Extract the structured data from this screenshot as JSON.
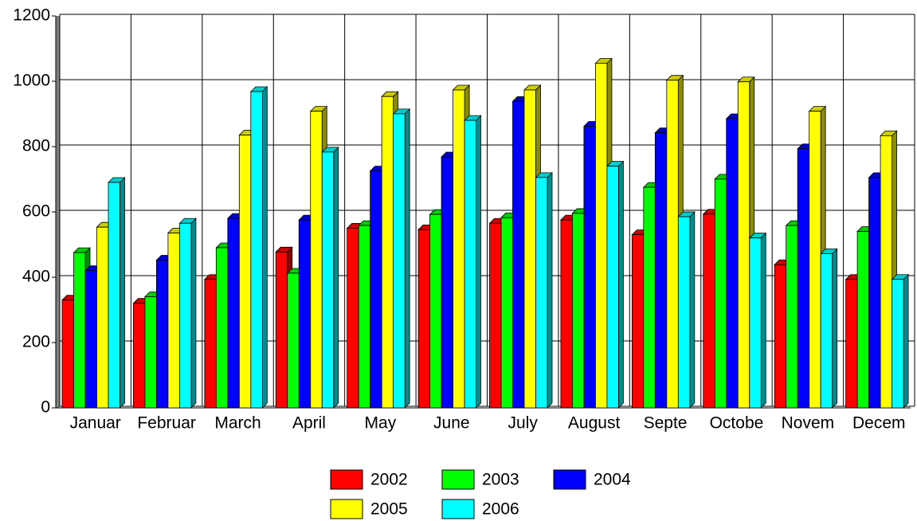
{
  "chart_data": {
    "type": "bar3d",
    "categories": [
      "Januar",
      "Februar",
      "March",
      "April",
      "May",
      "June",
      "July",
      "August",
      "Septe",
      "Octobe",
      "Novem",
      "Decem"
    ],
    "series": [
      {
        "name": "2002",
        "color": "#ff0000",
        "values": [
          340,
          330,
          403,
          487,
          560,
          555,
          575,
          585,
          540,
          603,
          448,
          403
        ]
      },
      {
        "name": "2003",
        "color": "#00ff00",
        "values": [
          485,
          350,
          500,
          422,
          568,
          602,
          592,
          605,
          685,
          710,
          568,
          550
        ]
      },
      {
        "name": "2004",
        "color": "#0000ff",
        "values": [
          430,
          462,
          590,
          585,
          735,
          778,
          948,
          872,
          852,
          895,
          803,
          715
        ]
      },
      {
        "name": "2005",
        "color": "#ffff00",
        "values": [
          563,
          545,
          845,
          918,
          963,
          983,
          983,
          1065,
          1013,
          1008,
          918,
          843
        ]
      },
      {
        "name": "2006",
        "color": "#00ffff",
        "values": [
          700,
          575,
          978,
          793,
          910,
          890,
          715,
          750,
          595,
          530,
          482,
          403
        ]
      }
    ],
    "ylim": [
      0,
      1200
    ],
    "yticks": [
      0,
      200,
      400,
      600,
      800,
      1000,
      1200
    ],
    "grid": true,
    "legend": "bottom"
  }
}
